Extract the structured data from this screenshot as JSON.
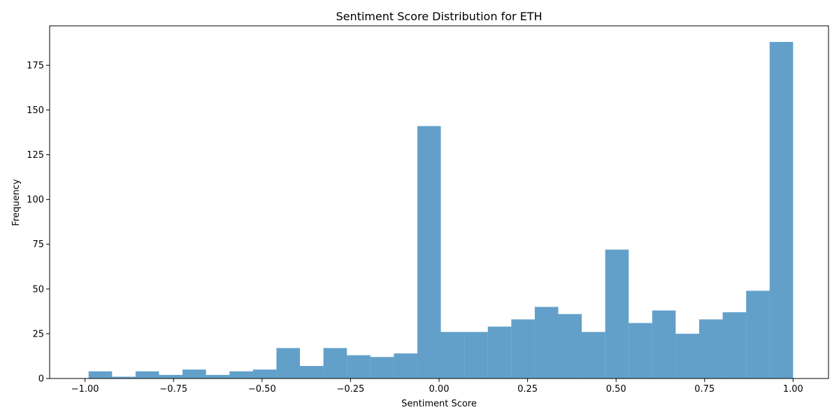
{
  "chart_data": {
    "type": "bar",
    "title": "Sentiment Score Distribution for ETH",
    "xlabel": "Sentiment Score",
    "ylabel": "Frequency",
    "xlim": [
      -1.1,
      1.1
    ],
    "ylim": [
      0,
      197
    ],
    "xticks": [
      "−1.00",
      "−0.75",
      "−0.50",
      "−0.25",
      "0.00",
      "0.25",
      "0.50",
      "0.75",
      "1.00"
    ],
    "xtick_values": [
      -1.0,
      -0.75,
      -0.5,
      -0.25,
      0.0,
      0.25,
      0.5,
      0.75,
      1.0
    ],
    "yticks": [
      "0",
      "25",
      "50",
      "75",
      "100",
      "125",
      "150",
      "175"
    ],
    "ytick_values": [
      0,
      25,
      50,
      75,
      100,
      125,
      150,
      175
    ],
    "grid": false,
    "bar_color": "#1f77b4",
    "bar_opacity": 0.7,
    "bins": {
      "start": -0.99,
      "end": 1.0,
      "count": 30
    },
    "values": [
      4,
      1,
      4,
      2,
      5,
      2,
      4,
      5,
      17,
      7,
      17,
      13,
      12,
      14,
      141,
      26,
      26,
      29,
      33,
      40,
      36,
      26,
      72,
      31,
      38,
      25,
      33,
      37,
      49,
      188
    ]
  }
}
